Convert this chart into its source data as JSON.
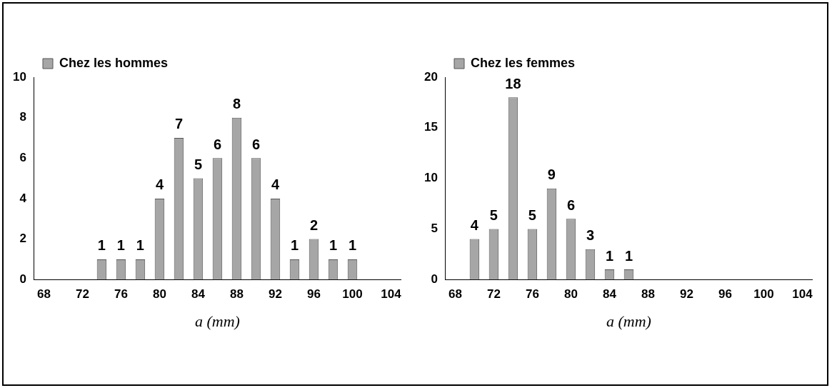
{
  "chart_data": [
    {
      "type": "bar",
      "categories": [
        "68",
        null,
        "72",
        null,
        "76",
        null,
        "80",
        null,
        "84",
        null,
        "88",
        null,
        "92",
        null,
        "96",
        null,
        "100",
        null,
        "104"
      ],
      "series": [
        {
          "name": "Chez les hommes",
          "color": "#a6a6a6",
          "values": [
            0,
            0,
            0,
            1,
            1,
            1,
            4,
            7,
            5,
            6,
            8,
            6,
            4,
            1,
            2,
            1,
            1,
            0,
            0
          ],
          "value_labels": [
            null,
            null,
            null,
            "1",
            "1",
            "1",
            "4",
            "7",
            "5",
            "6",
            "8",
            "6",
            "4",
            "1",
            "2",
            "1",
            "1",
            null,
            null
          ]
        }
      ],
      "xlabel": "a (mm)",
      "ylim": [
        0,
        10
      ],
      "yticks": [
        0,
        2,
        4,
        6,
        8,
        10
      ],
      "grid": false,
      "legend": "top left"
    },
    {
      "type": "bar",
      "categories": [
        "68",
        null,
        "72",
        null,
        "76",
        null,
        "80",
        null,
        "84",
        null,
        "88",
        null,
        "92",
        null,
        "96",
        null,
        "100",
        null,
        "104"
      ],
      "series": [
        {
          "name": "Chez les femmes",
          "color": "#a6a6a6",
          "values": [
            0,
            4,
            5,
            18,
            5,
            9,
            6,
            3,
            1,
            1,
            0,
            0,
            0,
            0,
            0,
            0,
            0,
            0,
            0
          ],
          "value_labels": [
            null,
            "4",
            "5",
            "18",
            "5",
            "9",
            "6",
            "3",
            "1",
            "1",
            null,
            null,
            null,
            null,
            null,
            null,
            null,
            null,
            null
          ]
        }
      ],
      "xlabel": "a (mm)",
      "ylim": [
        0,
        20
      ],
      "yticks": [
        0,
        5,
        10,
        15,
        20
      ],
      "grid": false,
      "legend": "top left"
    }
  ]
}
